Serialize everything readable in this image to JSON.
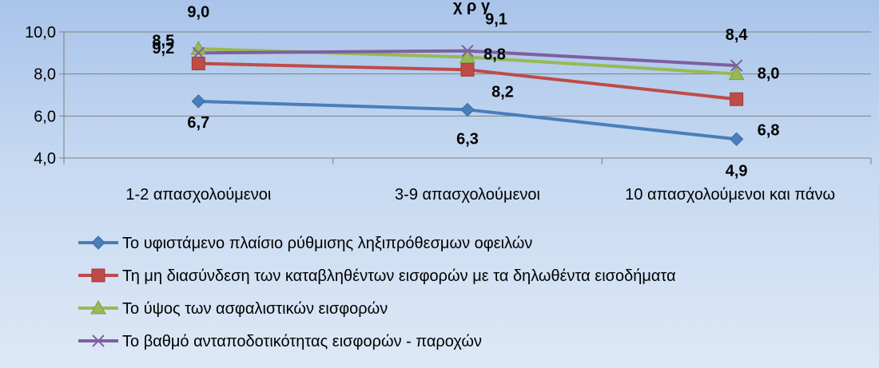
{
  "chart_data": {
    "type": "line",
    "title": "χ ρ γ",
    "categories": [
      "1-2 απασχολούμενοι",
      "3-9 απασχολούμενοι",
      "10 απασχολούμενοι και πάνω"
    ],
    "ylim": [
      4.0,
      10.0
    ],
    "yticks": [
      "4,0",
      "6,0",
      "8,0",
      "10,0"
    ],
    "grid": true,
    "legend_position": "bottom",
    "series": [
      {
        "name": "Το υφιστάμενο πλαίσιο ρύθμισης ληξιπρόθεσμων οφειλών",
        "values": [
          6.7,
          6.3,
          4.9
        ],
        "labels": [
          "6,7",
          "6,3",
          "4,9"
        ],
        "color": "#4a7ebb",
        "marker": "diamond"
      },
      {
        "name": "Τη μη διασύνδεση των καταβληθέντων εισφορών με τα δηλωθέντα εισοδήματα",
        "values": [
          8.5,
          8.2,
          6.8
        ],
        "labels": [
          "8,5",
          "8,2",
          "6,8"
        ],
        "color": "#be4b48",
        "marker": "square"
      },
      {
        "name": "Το ύψος των ασφαλιστικών εισφορών",
        "values": [
          9.2,
          8.8,
          8.0
        ],
        "labels": [
          "9,2",
          "8,8",
          "8,0"
        ],
        "color": "#98b954",
        "marker": "triangle"
      },
      {
        "name": "Το βαθμό ανταποδοτικότητας εισφορών - παροχών",
        "values": [
          9.0,
          9.1,
          8.4
        ],
        "labels": [
          "9,0",
          "9,1",
          "8,4"
        ],
        "color": "#7d60a0",
        "marker": "x"
      }
    ]
  }
}
